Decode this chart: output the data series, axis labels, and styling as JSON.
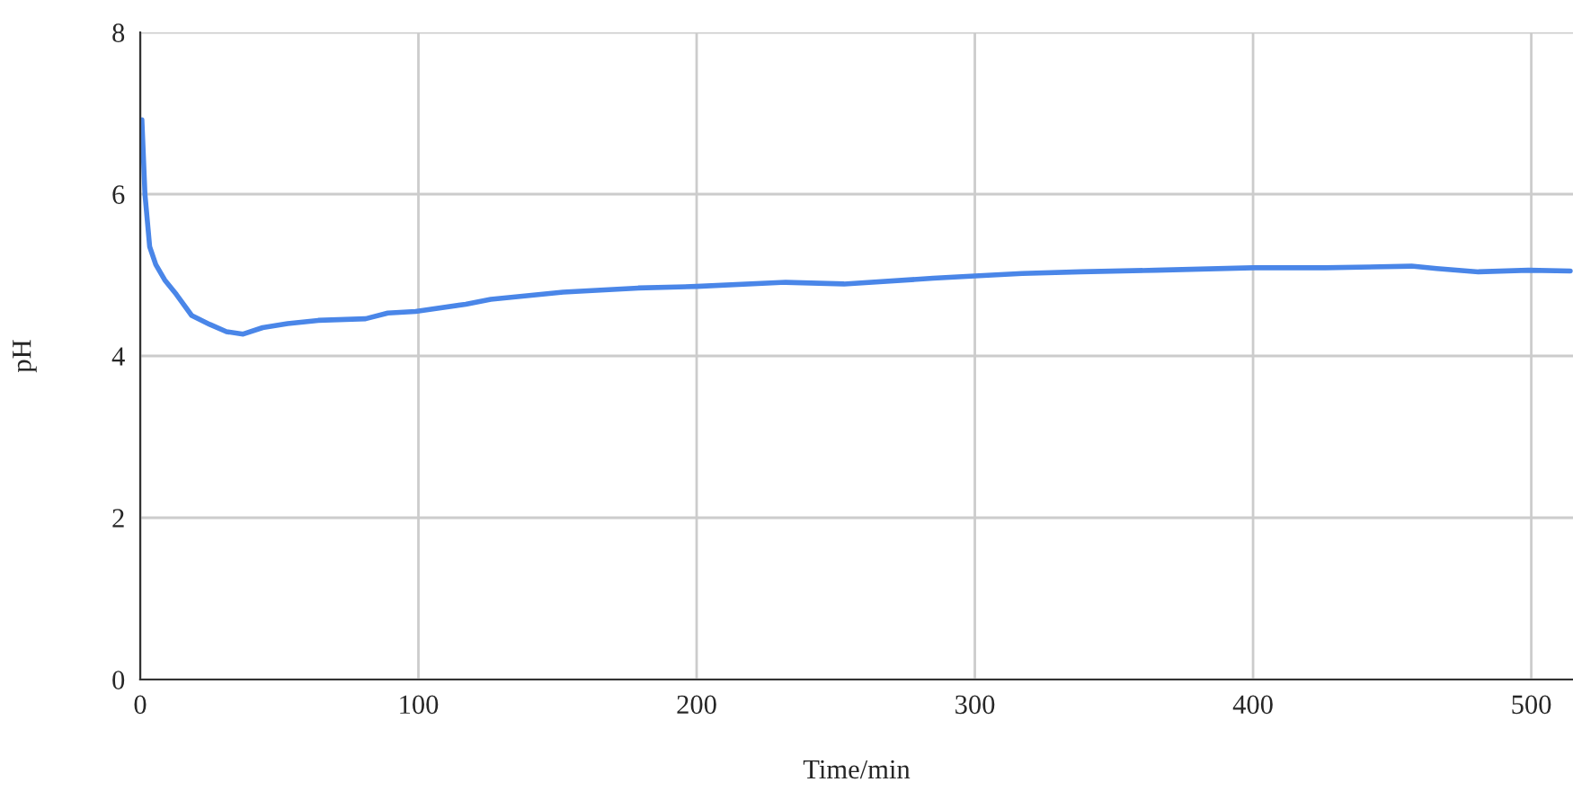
{
  "chart_data": {
    "type": "line",
    "xlabel": "Time/min",
    "ylabel": "pH",
    "xlim": [
      0,
      515
    ],
    "xticks": [
      0,
      100,
      200,
      300,
      400,
      500
    ],
    "ylim": [
      0,
      8
    ],
    "yticks": [
      0,
      2,
      4,
      6,
      8
    ],
    "grid": true,
    "marker": "none",
    "line_style": "solid",
    "series": [
      {
        "color": "#4a86e8",
        "x": [
          0.6,
          1.7,
          3.4,
          5.6,
          8.8,
          13,
          18.5,
          25,
          31,
          37,
          44,
          53,
          64,
          81,
          89,
          99,
          117,
          126,
          152,
          179,
          200,
          232,
          253,
          285,
          300,
          317,
          338,
          365,
          400,
          426,
          457,
          466,
          481,
          499,
          514
        ],
        "values": [
          6.92,
          6.0,
          5.35,
          5.13,
          4.94,
          4.76,
          4.5,
          4.39,
          4.3,
          4.27,
          4.35,
          4.4,
          4.44,
          4.46,
          4.53,
          4.55,
          4.64,
          4.7,
          4.79,
          4.84,
          4.86,
          4.91,
          4.89,
          4.96,
          4.99,
          5.02,
          5.04,
          5.06,
          5.09,
          5.09,
          5.11,
          5.08,
          5.04,
          5.06,
          5.05
        ]
      }
    ]
  }
}
